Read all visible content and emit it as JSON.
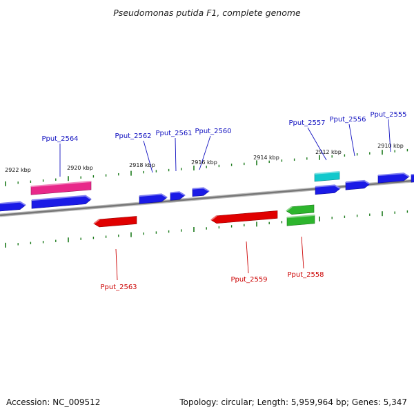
{
  "title": "Pseudomonas putida F1, complete genome",
  "footer": {
    "accession": "Accession: NC_009512",
    "summary": "Topology: circular; Length: 5,959,964 bp; Genes: 5,347"
  },
  "colors": {
    "forward": "#1a1ae6",
    "reverse": "#e00000",
    "pink": "#e8288a",
    "cyan": "#12c8cc",
    "green": "#2db52d",
    "tick": "#1b7a1b",
    "backbone": "#777777",
    "label_forward": "#1010c0",
    "label_reverse": "#cc0000"
  },
  "kbp_labels": [
    "2922 kbp",
    "2920 kbp",
    "2918 kbp",
    "2916 kbp",
    "2914 kbp",
    "2912 kbp",
    "2910 kbp"
  ],
  "genes": [
    {
      "name": "Pput_2564",
      "strand": "forward",
      "color": "pink"
    },
    {
      "name": "Pput_2562",
      "strand": "forward",
      "color": "forward"
    },
    {
      "name": "Pput_2561",
      "strand": "forward",
      "color": "forward"
    },
    {
      "name": "Pput_2560",
      "strand": "forward",
      "color": "forward"
    },
    {
      "name": "Pput_2557",
      "strand": "forward",
      "color": "cyan"
    },
    {
      "name": "Pput_2556",
      "strand": "forward",
      "color": "forward"
    },
    {
      "name": "Pput_2555",
      "strand": "forward",
      "color": "forward"
    },
    {
      "name": "Pput_2563",
      "strand": "reverse",
      "color": "reverse"
    },
    {
      "name": "Pput_2559",
      "strand": "reverse",
      "color": "reverse"
    },
    {
      "name": "Pput_2558",
      "strand": "reverse",
      "color": "green"
    }
  ]
}
